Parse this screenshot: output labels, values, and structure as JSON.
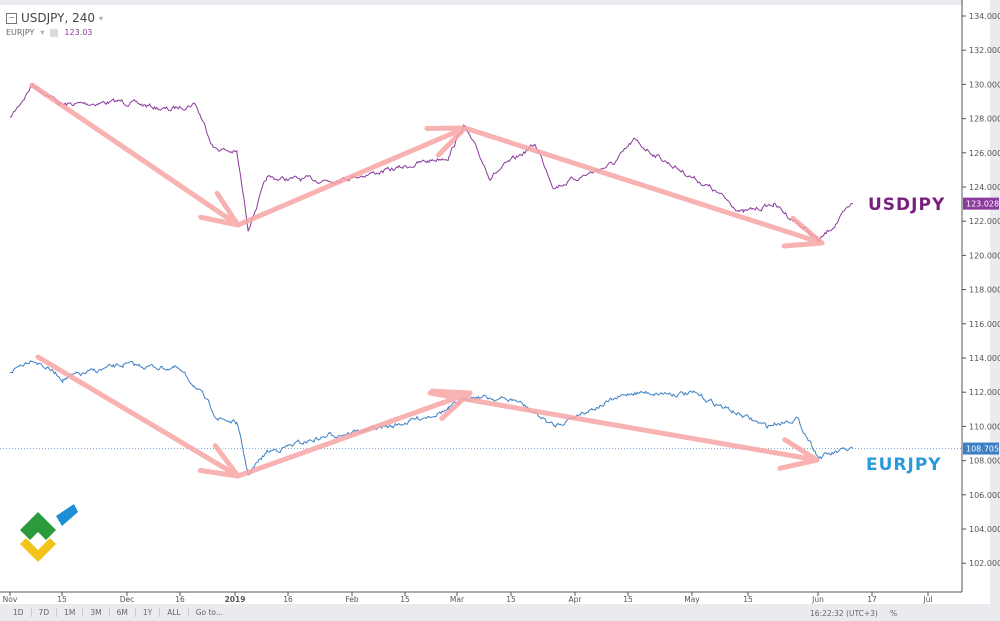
{
  "header": {
    "symbol": "USDJPY, 240",
    "compare_symbol": "EURJPY",
    "compare_value": "123.03"
  },
  "footer": {
    "ranges": [
      "1D",
      "7D",
      "1M",
      "3M",
      "6M",
      "1Y",
      "ALL",
      "Go to..."
    ],
    "clock": "16:22:32 (UTC+3)",
    "percent": "%"
  },
  "labels": {
    "usdjpy": "USDJPY",
    "eurjpy": "EURJPY"
  },
  "colors": {
    "usdjpy": "#8b3a9e",
    "eurjpy": "#3d7fc4",
    "arrows": "#f7a5a5"
  },
  "chart_data": {
    "type": "line",
    "x_ticks": [
      "Nov",
      "15",
      "Dec",
      "16",
      "2019",
      "16",
      "Feb",
      "15",
      "Mar",
      "15",
      "Apr",
      "15",
      "May",
      "15",
      "Jun",
      "17",
      "Jul"
    ],
    "y_ticks": [
      "134.000",
      "132.000",
      "130.000",
      "128.000",
      "126.000",
      "124.000",
      "122.000",
      "120.000",
      "118.000",
      "116.000",
      "114.000",
      "112.000",
      "110.000",
      "108.000",
      "106.000",
      "104.000",
      "102.000"
    ],
    "ylim": [
      101,
      134.5
    ],
    "last_values": {
      "usdjpy": "123.028",
      "eurjpy": "108.705"
    },
    "series": [
      {
        "name": "USDJPY",
        "points": [
          [
            "2018-11-01",
            128.0
          ],
          [
            "2018-11-07",
            130.0
          ],
          [
            "2018-11-15",
            128.8
          ],
          [
            "2018-12-01",
            129.0
          ],
          [
            "2018-12-13",
            128.5
          ],
          [
            "2018-12-20",
            128.9
          ],
          [
            "2018-12-25",
            126.3
          ],
          [
            "2018-12-31",
            126.0
          ],
          [
            "2019-01-03",
            121.6
          ],
          [
            "2019-01-08",
            124.5
          ],
          [
            "2019-01-25",
            124.4
          ],
          [
            "2019-02-10",
            125.0
          ],
          [
            "2019-02-25",
            125.8
          ],
          [
            "2019-03-01",
            127.6
          ],
          [
            "2019-03-08",
            124.6
          ],
          [
            "2019-03-20",
            126.5
          ],
          [
            "2019-03-25",
            124.0
          ],
          [
            "2019-04-10",
            125.4
          ],
          [
            "2019-04-15",
            126.7
          ],
          [
            "2019-04-25",
            125.3
          ],
          [
            "2019-05-05",
            124.0
          ],
          [
            "2019-05-14",
            122.5
          ],
          [
            "2019-05-22",
            123.0
          ],
          [
            "2019-05-30",
            121.6
          ],
          [
            "2019-06-03",
            120.8
          ],
          [
            "2019-06-12",
            123.0
          ]
        ]
      },
      {
        "name": "EURJPY",
        "points": [
          [
            "2018-11-01",
            113.2
          ],
          [
            "2018-11-07",
            114.0
          ],
          [
            "2018-11-15",
            112.8
          ],
          [
            "2018-12-01",
            113.6
          ],
          [
            "2018-12-15",
            113.4
          ],
          [
            "2018-12-20",
            112.4
          ],
          [
            "2018-12-26",
            110.5
          ],
          [
            "2018-12-31",
            110.2
          ],
          [
            "2019-01-03",
            107.2
          ],
          [
            "2019-01-08",
            108.5
          ],
          [
            "2019-01-25",
            109.5
          ],
          [
            "2019-02-10",
            110.0
          ],
          [
            "2019-02-25",
            111.0
          ],
          [
            "2019-03-03",
            111.8
          ],
          [
            "2019-03-15",
            111.5
          ],
          [
            "2019-03-25",
            110.0
          ],
          [
            "2019-04-01",
            110.8
          ],
          [
            "2019-04-15",
            112.0
          ],
          [
            "2019-05-01",
            111.9
          ],
          [
            "2019-05-10",
            111.0
          ],
          [
            "2019-05-20",
            110.0
          ],
          [
            "2019-05-28",
            110.5
          ],
          [
            "2019-06-01",
            109.0
          ],
          [
            "2019-06-03",
            108.2
          ],
          [
            "2019-06-12",
            108.7
          ]
        ]
      }
    ]
  }
}
